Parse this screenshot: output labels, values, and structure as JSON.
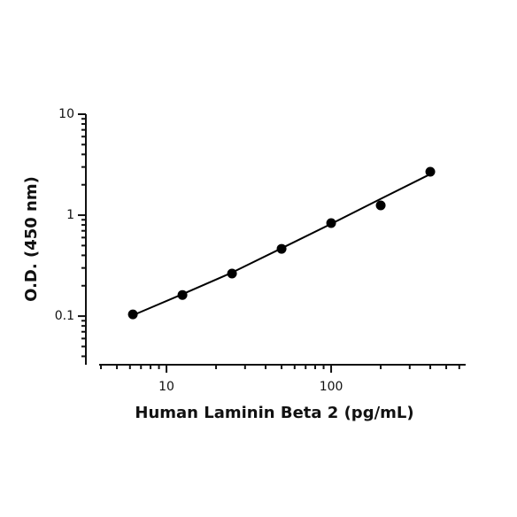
{
  "chart_data": {
    "type": "scatter",
    "x_label": "Human Laminin Beta 2 (pg/mL)",
    "y_label": "O.D. (450 nm)",
    "x_log": true,
    "y_log": true,
    "xlim": [
      3.9,
      656
    ],
    "ylim": [
      0.033,
      10
    ],
    "xticks": [
      10,
      100
    ],
    "xminorticks": [
      4,
      5,
      6,
      7,
      8,
      9,
      20,
      30,
      40,
      50,
      60,
      70,
      80,
      90,
      200,
      300,
      400,
      500,
      600
    ],
    "yticks": [
      0.1,
      1,
      10
    ],
    "yminorticks": [
      0.04,
      0.05,
      0.06,
      0.07,
      0.08,
      0.09,
      0.2,
      0.3,
      0.4,
      0.5,
      0.6,
      0.7,
      0.8,
      0.9,
      2,
      3,
      4,
      5,
      6,
      7,
      8,
      9
    ],
    "x": [
      6.25,
      12.5,
      25,
      50,
      100,
      200,
      400
    ],
    "series": [
      {
        "color": "#000000",
        "values": [
          0.104,
          0.162,
          0.264,
          0.464,
          0.834,
          1.25,
          2.69
        ]
      }
    ],
    "fit_line": {
      "color": "#000000",
      "x": [
        6.25,
        12.5,
        25,
        50,
        100,
        200,
        400
      ],
      "values": [
        0.102,
        0.165,
        0.27,
        0.47,
        0.82,
        1.45,
        2.55
      ]
    }
  }
}
